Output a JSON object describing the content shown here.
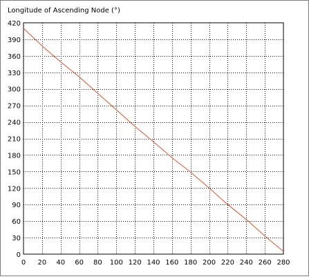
{
  "chart_data": {
    "type": "line",
    "title": "Longitude of Ascending Node (°)",
    "xlabel": "",
    "ylabel": "",
    "xlim": [
      0,
      280
    ],
    "ylim": [
      0,
      420
    ],
    "x_ticks": [
      0,
      20,
      40,
      60,
      80,
      100,
      120,
      140,
      160,
      180,
      200,
      220,
      240,
      260,
      280
    ],
    "y_ticks": [
      0,
      30,
      60,
      90,
      120,
      150,
      180,
      210,
      240,
      270,
      300,
      330,
      360,
      390,
      420
    ],
    "grid": true,
    "series": [
      {
        "color": "#d9532b",
        "x": [
          0,
          20,
          40,
          60,
          80,
          100,
          120,
          140,
          160,
          180,
          200,
          220,
          240,
          260,
          280
        ],
        "y": [
          410,
          378,
          349,
          322,
          292,
          262,
          232,
          204,
          175,
          149,
          120,
          90,
          63,
          33,
          5
        ]
      }
    ]
  }
}
